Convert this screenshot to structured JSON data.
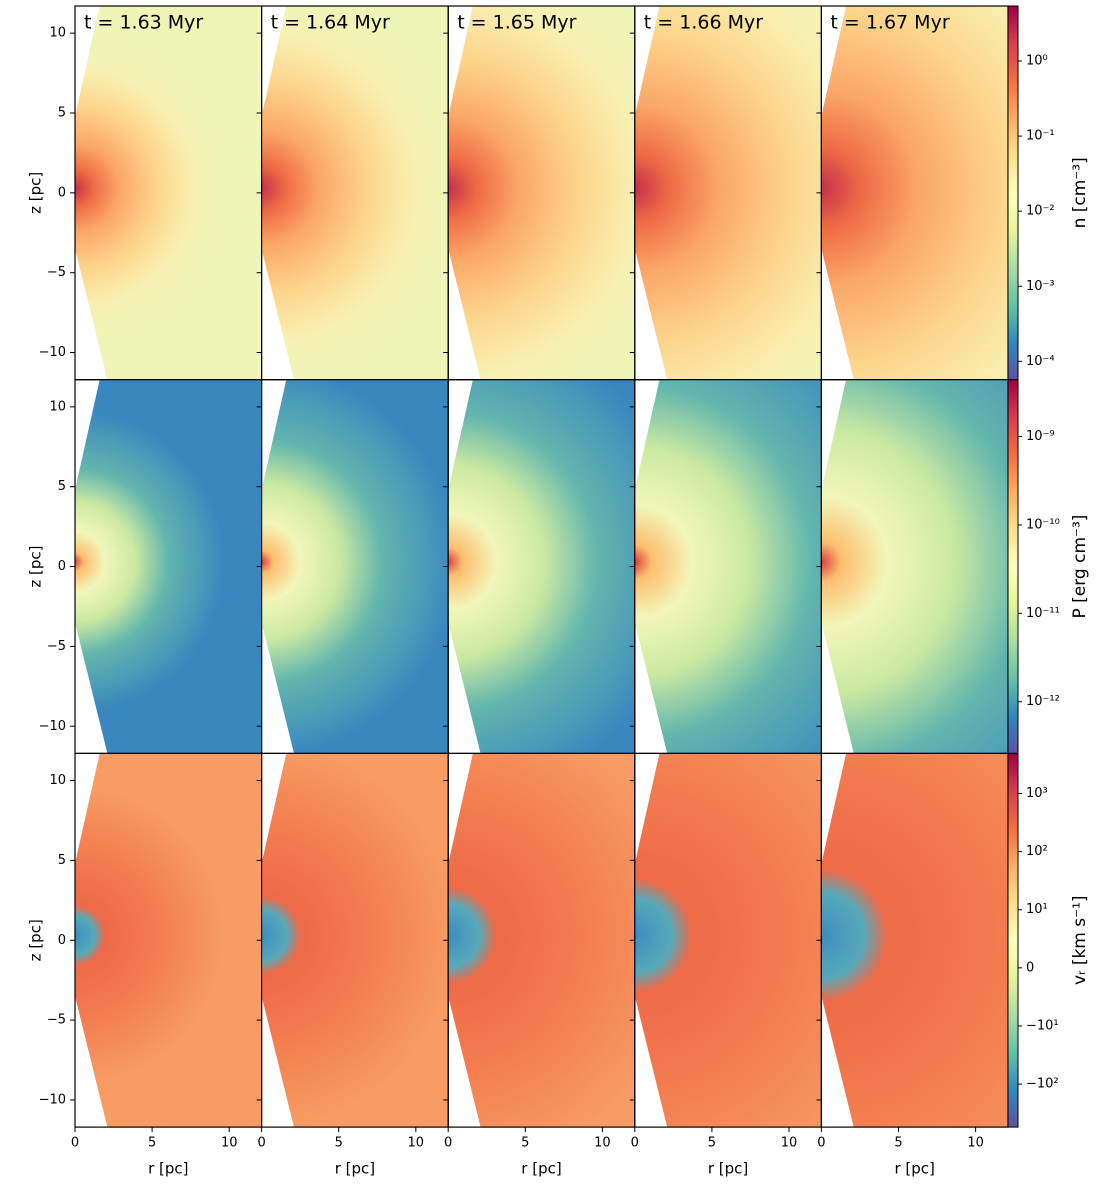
{
  "figure": {
    "times": [
      "t = 1.63 Myr",
      "t = 1.64 Myr",
      "t = 1.65 Myr",
      "t = 1.66 Myr",
      "t = 1.67 Myr"
    ],
    "xlabel": "r [pc]",
    "ylabel": "z [pc]",
    "xlim": [
      0,
      12.1
    ],
    "ylim": [
      -11.7,
      11.7
    ],
    "xticks": [
      0,
      5,
      10
    ],
    "yticks": [
      {
        "value": -10,
        "label": "−10"
      },
      {
        "value": -5,
        "label": "−5"
      },
      0,
      5,
      10
    ],
    "colormap": [
      "#5e4fa2",
      "#3288bd",
      "#66c2a5",
      "#abdda4",
      "#e6f598",
      "#ffffbf",
      "#fee08b",
      "#fdae61",
      "#f46d43",
      "#d53e4f",
      "#9e0142"
    ],
    "rows": [
      {
        "colorbar_label": "n [cm⁻³]",
        "scale": "log",
        "clim": [
          5.7e-05,
          5.4
        ],
        "cticks": [
          {
            "value": 0.0001,
            "label": "10⁻⁴"
          },
          {
            "value": 0.001,
            "label": "10⁻³"
          },
          {
            "value": 0.01,
            "label": "10⁻²"
          },
          {
            "value": 0.1,
            "label": "10⁻¹"
          },
          {
            "value": 1,
            "label": "10⁰"
          }
        ]
      },
      {
        "colorbar_label": "P [erg cm⁻³]",
        "scale": "log",
        "clim": [
          2.6e-13,
          4.4e-09
        ],
        "cticks": [
          {
            "value": 1e-12,
            "label": "10⁻¹²"
          },
          {
            "value": 1e-11,
            "label": "10⁻¹¹"
          },
          {
            "value": 1e-10,
            "label": "10⁻¹⁰"
          },
          {
            "value": 1e-09,
            "label": "10⁻⁹"
          }
        ]
      },
      {
        "colorbar_label": "vᵣ [km s⁻¹]",
        "scale": "symlog",
        "linthresh": 10,
        "clim": [
          -550,
          4900
        ],
        "cticks": [
          {
            "value": -100,
            "label": "−10²"
          },
          {
            "value": -10,
            "label": "−10¹"
          },
          0,
          {
            "value": 10,
            "label": "10¹"
          },
          {
            "value": 100,
            "label": "10²"
          },
          {
            "value": 1000,
            "label": "10³"
          }
        ]
      }
    ]
  }
}
